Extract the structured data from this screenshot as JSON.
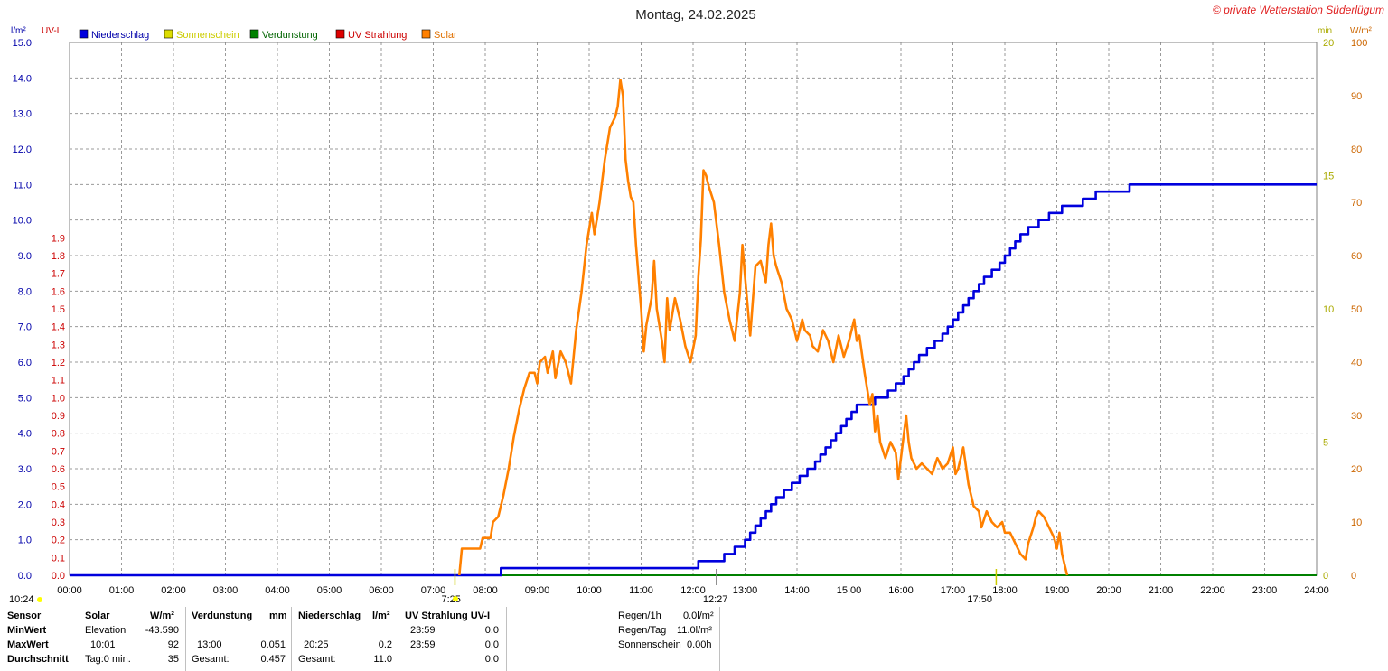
{
  "title": "Montag, 24.02.2025",
  "copyright": "© private Wetterstation Süderlügum",
  "colors": {
    "niederschlag": "#0000dd",
    "sonnenschein": "#cccc00",
    "verdunstung": "#008000",
    "uv": "#dd0000",
    "solar": "#ff8000",
    "grid": "#888888"
  },
  "legend": [
    {
      "name": "Niederschlag",
      "color": "#0000dd",
      "text_color": "#0000aa"
    },
    {
      "name": "Sonnenschein",
      "color": "#dddd00",
      "text_color": "#cccc00"
    },
    {
      "name": "Verdunstung",
      "color": "#008000",
      "text_color": "#006400"
    },
    {
      "name": "UV Strahlung",
      "color": "#dd0000",
      "text_color": "#cc0000"
    },
    {
      "name": "Solar",
      "color": "#ff8000",
      "text_color": "#e07000"
    }
  ],
  "axis_units": {
    "left_outer": "l/m²",
    "left_inner": "UV-I",
    "right_inner": "min",
    "right_outer": "W/m²"
  },
  "chart_data": {
    "type": "line",
    "title": "Montag, 24.02.2025",
    "x_range": [
      "00:00",
      "24:00"
    ],
    "x_ticks": [
      "00:00",
      "01:00",
      "02:00",
      "03:00",
      "04:00",
      "05:00",
      "06:00",
      "07:00",
      "08:00",
      "09:00",
      "10:00",
      "11:00",
      "12:00",
      "13:00",
      "14:00",
      "15:00",
      "16:00",
      "17:00",
      "18:00",
      "19:00",
      "20:00",
      "21:00",
      "22:00",
      "23:00",
      "24:00"
    ],
    "y_left_outer_ticks": [
      "0.0",
      "1.0",
      "2.0",
      "3.0",
      "4.0",
      "5.0",
      "6.0",
      "7.0",
      "8.0",
      "9.0",
      "10.0",
      "11.0",
      "12.0",
      "13.0",
      "14.0",
      "15.0"
    ],
    "y_left_inner_ticks": [
      "0.0",
      "0.1",
      "0.2",
      "0.3",
      "0.4",
      "0.5",
      "0.6",
      "0.7",
      "0.8",
      "0.9",
      "1.0",
      "1.1",
      "1.2",
      "1.3",
      "1.4",
      "1.5",
      "1.6",
      "1.7",
      "1.8",
      "1.9"
    ],
    "y_right_inner_ticks": [
      "0",
      "5",
      "10",
      "15",
      "20"
    ],
    "y_right_outer_ticks": [
      "0",
      "10",
      "20",
      "30",
      "40",
      "50",
      "60",
      "70",
      "80",
      "90",
      "100"
    ],
    "ylim_left_outer": [
      0,
      15
    ],
    "ylim_right_outer": [
      0,
      100
    ],
    "grid": true,
    "series": [
      {
        "name": "Niederschlag",
        "axis": "left_outer",
        "step": true,
        "points": [
          [
            0,
            0
          ],
          [
            8.3,
            0
          ],
          [
            8.3,
            0.2
          ],
          [
            12.1,
            0.2
          ],
          [
            12.1,
            0.4
          ],
          [
            12.6,
            0.4
          ],
          [
            12.6,
            0.6
          ],
          [
            12.8,
            0.6
          ],
          [
            12.8,
            0.8
          ],
          [
            13.0,
            0.8
          ],
          [
            13.0,
            1.0
          ],
          [
            13.1,
            1.0
          ],
          [
            13.1,
            1.2
          ],
          [
            13.2,
            1.2
          ],
          [
            13.2,
            1.4
          ],
          [
            13.3,
            1.4
          ],
          [
            13.3,
            1.6
          ],
          [
            13.4,
            1.6
          ],
          [
            13.4,
            1.8
          ],
          [
            13.5,
            1.8
          ],
          [
            13.5,
            2.0
          ],
          [
            13.6,
            2.0
          ],
          [
            13.6,
            2.2
          ],
          [
            13.75,
            2.2
          ],
          [
            13.75,
            2.4
          ],
          [
            13.9,
            2.4
          ],
          [
            13.9,
            2.6
          ],
          [
            14.05,
            2.6
          ],
          [
            14.05,
            2.8
          ],
          [
            14.2,
            2.8
          ],
          [
            14.2,
            3.0
          ],
          [
            14.35,
            3.0
          ],
          [
            14.35,
            3.2
          ],
          [
            14.45,
            3.2
          ],
          [
            14.45,
            3.4
          ],
          [
            14.55,
            3.4
          ],
          [
            14.55,
            3.6
          ],
          [
            14.65,
            3.6
          ],
          [
            14.65,
            3.8
          ],
          [
            14.75,
            3.8
          ],
          [
            14.75,
            4.0
          ],
          [
            14.85,
            4.0
          ],
          [
            14.85,
            4.2
          ],
          [
            14.95,
            4.2
          ],
          [
            14.95,
            4.4
          ],
          [
            15.05,
            4.4
          ],
          [
            15.05,
            4.6
          ],
          [
            15.15,
            4.6
          ],
          [
            15.15,
            4.8
          ],
          [
            15.5,
            4.8
          ],
          [
            15.5,
            5.0
          ],
          [
            15.75,
            5.0
          ],
          [
            15.75,
            5.2
          ],
          [
            15.9,
            5.2
          ],
          [
            15.9,
            5.4
          ],
          [
            16.05,
            5.4
          ],
          [
            16.05,
            5.6
          ],
          [
            16.15,
            5.6
          ],
          [
            16.15,
            5.8
          ],
          [
            16.25,
            5.8
          ],
          [
            16.25,
            6.0
          ],
          [
            16.35,
            6.0
          ],
          [
            16.35,
            6.2
          ],
          [
            16.5,
            6.2
          ],
          [
            16.5,
            6.4
          ],
          [
            16.65,
            6.4
          ],
          [
            16.65,
            6.6
          ],
          [
            16.8,
            6.6
          ],
          [
            16.8,
            6.8
          ],
          [
            16.9,
            6.8
          ],
          [
            16.9,
            7.0
          ],
          [
            17.0,
            7.0
          ],
          [
            17.0,
            7.2
          ],
          [
            17.1,
            7.2
          ],
          [
            17.1,
            7.4
          ],
          [
            17.2,
            7.4
          ],
          [
            17.2,
            7.6
          ],
          [
            17.3,
            7.6
          ],
          [
            17.3,
            7.8
          ],
          [
            17.4,
            7.8
          ],
          [
            17.4,
            8.0
          ],
          [
            17.5,
            8.0
          ],
          [
            17.5,
            8.2
          ],
          [
            17.6,
            8.2
          ],
          [
            17.6,
            8.4
          ],
          [
            17.75,
            8.4
          ],
          [
            17.75,
            8.6
          ],
          [
            17.9,
            8.6
          ],
          [
            17.9,
            8.8
          ],
          [
            18.0,
            8.8
          ],
          [
            18.0,
            9.0
          ],
          [
            18.1,
            9.0
          ],
          [
            18.1,
            9.2
          ],
          [
            18.2,
            9.2
          ],
          [
            18.2,
            9.4
          ],
          [
            18.3,
            9.4
          ],
          [
            18.3,
            9.6
          ],
          [
            18.45,
            9.6
          ],
          [
            18.45,
            9.8
          ],
          [
            18.65,
            9.8
          ],
          [
            18.65,
            10.0
          ],
          [
            18.85,
            10.0
          ],
          [
            18.85,
            10.2
          ],
          [
            19.1,
            10.2
          ],
          [
            19.1,
            10.4
          ],
          [
            19.5,
            10.4
          ],
          [
            19.5,
            10.6
          ],
          [
            19.75,
            10.6
          ],
          [
            19.75,
            10.8
          ],
          [
            20.4,
            10.8
          ],
          [
            20.4,
            11.0
          ],
          [
            24,
            11.0
          ]
        ]
      },
      {
        "name": "Solar",
        "axis": "right_outer",
        "points": [
          [
            7.5,
            0
          ],
          [
            7.55,
            5
          ],
          [
            7.9,
            5
          ],
          [
            7.95,
            7
          ],
          [
            8.1,
            7
          ],
          [
            8.15,
            10
          ],
          [
            8.25,
            11
          ],
          [
            8.35,
            15
          ],
          [
            8.45,
            20
          ],
          [
            8.55,
            26
          ],
          [
            8.65,
            31
          ],
          [
            8.75,
            35
          ],
          [
            8.85,
            38
          ],
          [
            8.95,
            38
          ],
          [
            9.0,
            36
          ],
          [
            9.05,
            40
          ],
          [
            9.15,
            41
          ],
          [
            9.2,
            38
          ],
          [
            9.3,
            42
          ],
          [
            9.35,
            37
          ],
          [
            9.45,
            42
          ],
          [
            9.55,
            40
          ],
          [
            9.65,
            36
          ],
          [
            9.75,
            46
          ],
          [
            9.85,
            53
          ],
          [
            9.95,
            62
          ],
          [
            10.05,
            68
          ],
          [
            10.1,
            64
          ],
          [
            10.2,
            70
          ],
          [
            10.3,
            78
          ],
          [
            10.4,
            84
          ],
          [
            10.5,
            86
          ],
          [
            10.55,
            88
          ],
          [
            10.6,
            93
          ],
          [
            10.65,
            90
          ],
          [
            10.7,
            78
          ],
          [
            10.75,
            74
          ],
          [
            10.8,
            71
          ],
          [
            10.85,
            70
          ],
          [
            10.9,
            62
          ],
          [
            11.0,
            50
          ],
          [
            11.05,
            42
          ],
          [
            11.1,
            47
          ],
          [
            11.2,
            52
          ],
          [
            11.25,
            59
          ],
          [
            11.3,
            50
          ],
          [
            11.4,
            44
          ],
          [
            11.45,
            40
          ],
          [
            11.5,
            52
          ],
          [
            11.55,
            46
          ],
          [
            11.65,
            52
          ],
          [
            11.75,
            48
          ],
          [
            11.85,
            43
          ],
          [
            11.95,
            40
          ],
          [
            12.05,
            45
          ],
          [
            12.1,
            56
          ],
          [
            12.15,
            63
          ],
          [
            12.2,
            76
          ],
          [
            12.25,
            75
          ],
          [
            12.3,
            73
          ],
          [
            12.4,
            70
          ],
          [
            12.5,
            62
          ],
          [
            12.6,
            53
          ],
          [
            12.7,
            48
          ],
          [
            12.8,
            44
          ],
          [
            12.9,
            53
          ],
          [
            12.95,
            62
          ],
          [
            13.0,
            56
          ],
          [
            13.1,
            45
          ],
          [
            13.2,
            58
          ],
          [
            13.3,
            59
          ],
          [
            13.4,
            55
          ],
          [
            13.45,
            62
          ],
          [
            13.5,
            66
          ],
          [
            13.55,
            60
          ],
          [
            13.6,
            58
          ],
          [
            13.7,
            55
          ],
          [
            13.8,
            50
          ],
          [
            13.9,
            48
          ],
          [
            14.0,
            44
          ],
          [
            14.1,
            48
          ],
          [
            14.15,
            46
          ],
          [
            14.25,
            45
          ],
          [
            14.3,
            43
          ],
          [
            14.4,
            42
          ],
          [
            14.5,
            46
          ],
          [
            14.6,
            44
          ],
          [
            14.7,
            40
          ],
          [
            14.8,
            45
          ],
          [
            14.9,
            41
          ],
          [
            15.0,
            44
          ],
          [
            15.1,
            48
          ],
          [
            15.15,
            44
          ],
          [
            15.2,
            45
          ],
          [
            15.3,
            38
          ],
          [
            15.4,
            32
          ],
          [
            15.45,
            34
          ],
          [
            15.5,
            27
          ],
          [
            15.55,
            30
          ],
          [
            15.6,
            25
          ],
          [
            15.7,
            22
          ],
          [
            15.8,
            25
          ],
          [
            15.9,
            23
          ],
          [
            15.95,
            18
          ],
          [
            16.0,
            22
          ],
          [
            16.1,
            30
          ],
          [
            16.15,
            25
          ],
          [
            16.2,
            22
          ],
          [
            16.3,
            20
          ],
          [
            16.4,
            21
          ],
          [
            16.5,
            20
          ],
          [
            16.6,
            19
          ],
          [
            16.7,
            22
          ],
          [
            16.8,
            20
          ],
          [
            16.9,
            21
          ],
          [
            17.0,
            24
          ],
          [
            17.05,
            19
          ],
          [
            17.1,
            20
          ],
          [
            17.2,
            24
          ],
          [
            17.3,
            17
          ],
          [
            17.4,
            13
          ],
          [
            17.5,
            12
          ],
          [
            17.55,
            9
          ],
          [
            17.65,
            12
          ],
          [
            17.75,
            10
          ],
          [
            17.85,
            9
          ],
          [
            17.95,
            10
          ],
          [
            18.0,
            8
          ],
          [
            18.1,
            8
          ],
          [
            18.2,
            6
          ],
          [
            18.3,
            4
          ],
          [
            18.4,
            3
          ],
          [
            18.45,
            6
          ],
          [
            18.55,
            9
          ],
          [
            18.6,
            11
          ],
          [
            18.65,
            12
          ],
          [
            18.75,
            11
          ],
          [
            18.85,
            9
          ],
          [
            18.95,
            7
          ],
          [
            19.0,
            5
          ],
          [
            19.05,
            8
          ],
          [
            19.1,
            4
          ],
          [
            19.15,
            2
          ],
          [
            19.2,
            0
          ]
        ]
      }
    ],
    "markers": [
      {
        "label": "7:25",
        "time": "07:25"
      },
      {
        "label": "12:27",
        "time": "12:27"
      },
      {
        "label": "17:50",
        "time": "17:50"
      }
    ],
    "bottom_left_time": "10:24"
  },
  "stats": {
    "headers": {
      "sensor": "Sensor",
      "solar": "Solar",
      "solar_unit": "W/m²",
      "verdunstung": "Verdunstung",
      "verd_unit": "mm",
      "niederschlag": "Niederschlag",
      "nied_unit": "l/m²",
      "uv": "UV Strahlung UV-I"
    },
    "rows": [
      "MinWert",
      "MaxWert",
      "Durchschnitt"
    ],
    "solar_col": [
      [
        "Elevation",
        "-43.590"
      ],
      [
        "10:01",
        "92"
      ],
      [
        "Tag:0 min.",
        "35"
      ]
    ],
    "verd_col": [
      [
        "",
        ""
      ],
      [
        "13:00",
        "0.051"
      ],
      [
        "Gesamt:",
        "0.457"
      ]
    ],
    "nied_col": [
      [
        "",
        ""
      ],
      [
        "20:25",
        "0.2"
      ],
      [
        "Gesamt:",
        "11.0"
      ]
    ],
    "uv_col": [
      [
        "23:59",
        "0.0"
      ],
      [
        "23:59",
        "0.0"
      ],
      [
        "",
        "0.0"
      ]
    ],
    "extra": [
      [
        "Regen/1h",
        "0.0l/m²"
      ],
      [
        "Regen/Tag",
        "11.0l/m²"
      ],
      [
        "Sonnenschein",
        "0.00h"
      ]
    ]
  }
}
